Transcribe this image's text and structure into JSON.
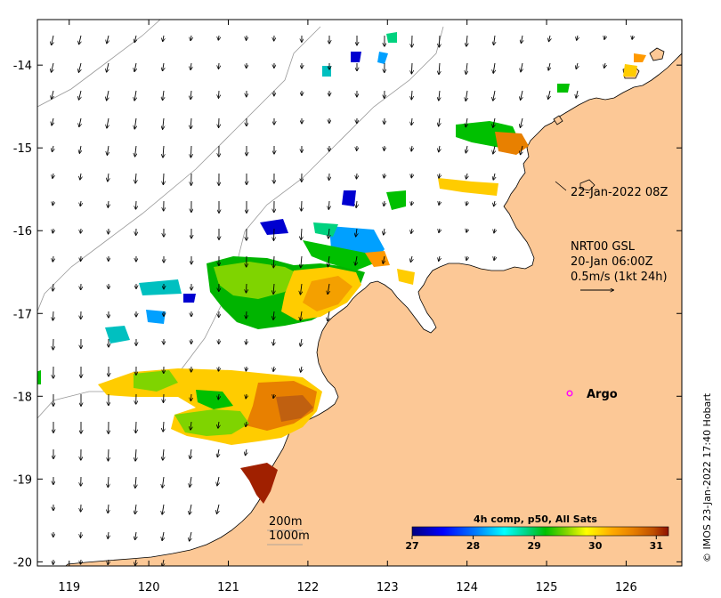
{
  "map": {
    "x_ticks": [
      "119",
      "120",
      "121",
      "122",
      "123",
      "124",
      "125",
      "126"
    ],
    "y_ticks": [
      "-14",
      "-15",
      "-16",
      "-17",
      "-18",
      "-19",
      "-20"
    ],
    "extent": {
      "lon": [
        118.6,
        126.7
      ],
      "lat": [
        -20.05,
        -13.45
      ]
    },
    "colors": {
      "land": "#fcc896",
      "frame": "#000000",
      "isobath": "#999999"
    }
  },
  "annotations": {
    "timestamp": "22-Jan-2022 08Z",
    "current_source": "NRT00 GSL",
    "current_time": "20-Jan 06:00Z",
    "current_scale": "0.5m/s (1kt 24h)",
    "argo_label": "Argo",
    "argo_color": "#ff00ff",
    "isobath_200": "200m",
    "isobath_1000": "1000m"
  },
  "colorbar": {
    "title": "4h comp, p50, All Sats",
    "ticks": [
      "27",
      "28",
      "29",
      "30",
      "31"
    ],
    "range": [
      27,
      31.2
    ],
    "colormap": [
      "#00007f",
      "#0000ff",
      "#007fff",
      "#00ffff",
      "#00d27f",
      "#00c000",
      "#7fd400",
      "#ffff00",
      "#ffaa00",
      "#e88000",
      "#c05000",
      "#8f1000"
    ]
  },
  "credit": "© IMOS 23-Jan-2022 17:40 Hobart"
}
